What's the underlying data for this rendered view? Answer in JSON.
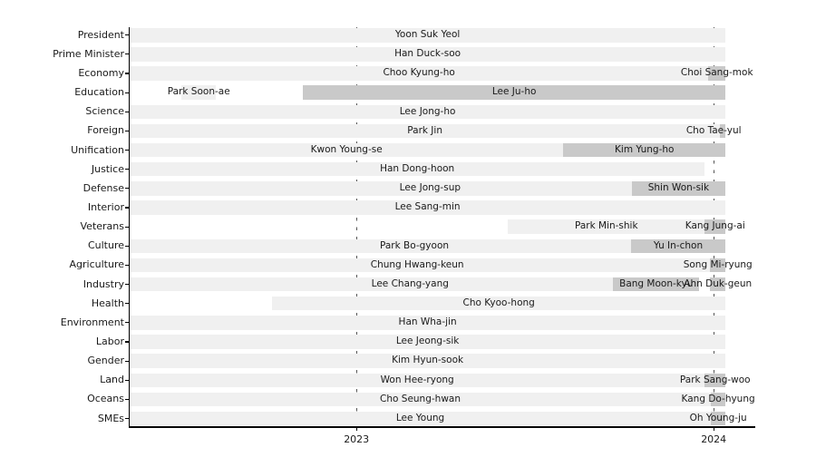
{
  "colors": {
    "background": "#ffffff",
    "bar_light": "#f0f0f0",
    "bar_dark": "#c9c9c9",
    "text": "#1a1a1a",
    "axis": "#000000",
    "gridline": "#555555"
  },
  "chart_data": {
    "type": "bar",
    "variant": "horizontal-gantt-timeline",
    "title": "",
    "xlabel": "",
    "ylabel": "",
    "grid": "dashed-vertical-at-year-ticks",
    "legend": "none",
    "x_range": [
      2022.365,
      2024.115
    ],
    "x_ticks": [
      {
        "year": 2023,
        "label": "2023"
      },
      {
        "year": 2024,
        "label": "2024"
      }
    ],
    "categories": [
      "President",
      "Prime Minister",
      "Economy",
      "Education",
      "Science",
      "Foreign",
      "Unification",
      "Justice",
      "Defense",
      "Interior",
      "Veterans",
      "Culture",
      "Agriculture",
      "Industry",
      "Health",
      "Environment",
      "Labor",
      "Gender",
      "Land",
      "Oceans",
      "SMEs"
    ],
    "rows": [
      {
        "category": "President",
        "segments": [
          {
            "name": "Yoon Suk Yeol",
            "start": 2022.365,
            "end": 2024.033,
            "shade": "light"
          }
        ]
      },
      {
        "category": "Prime Minister",
        "segments": [
          {
            "name": "Han Duck-soo",
            "start": 2022.365,
            "end": 2024.033,
            "shade": "light"
          }
        ]
      },
      {
        "category": "Economy",
        "segments": [
          {
            "name": "Choo Kyung-ho",
            "start": 2022.365,
            "end": 2023.985,
            "shade": "light"
          },
          {
            "name": "Choi Sang-mok",
            "start": 2023.985,
            "end": 2024.033,
            "shade": "dark"
          }
        ]
      },
      {
        "category": "Education",
        "segments": [
          {
            "name": "Park Soon-ae",
            "start": 2022.51,
            "end": 2022.607,
            "shade": "light"
          },
          {
            "name": "Lee Ju-ho",
            "start": 2022.85,
            "end": 2024.033,
            "shade": "dark"
          }
        ]
      },
      {
        "category": "Science",
        "segments": [
          {
            "name": "Lee Jong-ho",
            "start": 2022.365,
            "end": 2024.033,
            "shade": "light"
          }
        ]
      },
      {
        "category": "Foreign",
        "segments": [
          {
            "name": "Park Jin",
            "start": 2022.365,
            "end": 2024.018,
            "shade": "light"
          },
          {
            "name": "Cho Tae-yul",
            "start": 2024.018,
            "end": 2024.033,
            "shade": "dark",
            "label_year": 2024.0
          }
        ]
      },
      {
        "category": "Unification",
        "segments": [
          {
            "name": "Kwon Young-se",
            "start": 2022.365,
            "end": 2023.579,
            "shade": "light"
          },
          {
            "name": "Kim Yung-ho",
            "start": 2023.579,
            "end": 2024.033,
            "shade": "dark"
          }
        ]
      },
      {
        "category": "Justice",
        "segments": [
          {
            "name": "Han Dong-hoon",
            "start": 2022.365,
            "end": 2023.975,
            "shade": "light"
          }
        ]
      },
      {
        "category": "Defense",
        "segments": [
          {
            "name": "Lee Jong-sup",
            "start": 2022.365,
            "end": 2023.77,
            "shade": "light",
            "label_year": 2023.206
          },
          {
            "name": "Shin Won-sik",
            "start": 2023.77,
            "end": 2024.033,
            "shade": "dark"
          }
        ]
      },
      {
        "category": "Interior",
        "segments": [
          {
            "name": "Lee Sang-min",
            "start": 2022.365,
            "end": 2024.033,
            "shade": "light"
          }
        ]
      },
      {
        "category": "Veterans",
        "segments": [
          {
            "name": "Park Min-shik",
            "start": 2023.424,
            "end": 2023.975,
            "shade": "light"
          },
          {
            "name": "Kang Jung-ai",
            "start": 2023.975,
            "end": 2024.033,
            "shade": "dark"
          }
        ]
      },
      {
        "category": "Culture",
        "segments": [
          {
            "name": "Park Bo-gyoon",
            "start": 2022.365,
            "end": 2023.768,
            "shade": "light",
            "label_year": 2023.162
          },
          {
            "name": "Yu In-chon",
            "start": 2023.768,
            "end": 2024.033,
            "shade": "dark"
          }
        ]
      },
      {
        "category": "Agriculture",
        "segments": [
          {
            "name": "Chung Hwang-keun",
            "start": 2022.365,
            "end": 2023.99,
            "shade": "light",
            "label_year": 2023.17
          },
          {
            "name": "Song Mi-ryung",
            "start": 2023.99,
            "end": 2024.033,
            "shade": "dark"
          }
        ]
      },
      {
        "category": "Industry",
        "segments": [
          {
            "name": "Lee Chang-yang",
            "start": 2022.365,
            "end": 2023.718,
            "shade": "light",
            "label_year": 2023.15
          },
          {
            "name": "Bang Moon-kyu",
            "start": 2023.718,
            "end": 2023.96,
            "shade": "dark"
          },
          {
            "name": "Ahn Duk-geun",
            "start": 2023.99,
            "end": 2024.033,
            "shade": "dark"
          }
        ]
      },
      {
        "category": "Health",
        "segments": [
          {
            "name": "Cho Kyoo-hong",
            "start": 2022.764,
            "end": 2024.033,
            "shade": "light"
          }
        ]
      },
      {
        "category": "Environment",
        "segments": [
          {
            "name": "Han Wha-jin",
            "start": 2022.365,
            "end": 2024.033,
            "shade": "light"
          }
        ]
      },
      {
        "category": "Labor",
        "segments": [
          {
            "name": "Lee Jeong-sik",
            "start": 2022.365,
            "end": 2024.033,
            "shade": "light"
          }
        ]
      },
      {
        "category": "Gender",
        "segments": [
          {
            "name": "Kim Hyun-sook",
            "start": 2022.365,
            "end": 2024.033,
            "shade": "light"
          }
        ]
      },
      {
        "category": "Land",
        "segments": [
          {
            "name": "Won Hee-ryong",
            "start": 2022.365,
            "end": 2023.975,
            "shade": "light"
          },
          {
            "name": "Park Sang-woo",
            "start": 2023.975,
            "end": 2024.033,
            "shade": "dark"
          }
        ]
      },
      {
        "category": "Oceans",
        "segments": [
          {
            "name": "Cho Seung-hwan",
            "start": 2022.365,
            "end": 2023.992,
            "shade": "light"
          },
          {
            "name": "Kang Do-hyung",
            "start": 2023.992,
            "end": 2024.033,
            "shade": "dark"
          }
        ]
      },
      {
        "category": "SMEs",
        "segments": [
          {
            "name": "Lee Young",
            "start": 2022.365,
            "end": 2023.992,
            "shade": "light"
          },
          {
            "name": "Oh Young-ju",
            "start": 2023.992,
            "end": 2024.033,
            "shade": "dark"
          }
        ]
      }
    ]
  }
}
